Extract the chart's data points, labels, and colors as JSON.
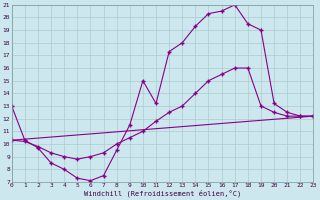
{
  "xlabel": "Windchill (Refroidissement éolien,°C)",
  "bg_color": "#cce8ee",
  "line_color": "#880088",
  "grid_color": "#aacccc",
  "xmin": 0,
  "xmax": 23,
  "ymin": 7,
  "ymax": 21,
  "line1_x": [
    0,
    1,
    2,
    3,
    4,
    5,
    6,
    7,
    8,
    9,
    10,
    11,
    12,
    13,
    14,
    15,
    16,
    17,
    18,
    19,
    20,
    21,
    22,
    23
  ],
  "line1_y": [
    13.0,
    10.3,
    9.7,
    8.5,
    8.0,
    7.3,
    7.1,
    7.5,
    9.5,
    11.5,
    15.0,
    13.2,
    17.3,
    18.0,
    19.3,
    20.3,
    20.5,
    21.0,
    19.5,
    19.0,
    13.2,
    12.5,
    12.2,
    12.2
  ],
  "line2_x": [
    0,
    1,
    2,
    3,
    4,
    5,
    6,
    7,
    8,
    9,
    10,
    11,
    12,
    13,
    14,
    15,
    16,
    17,
    18,
    19,
    20,
    21,
    22,
    23
  ],
  "line2_y": [
    10.3,
    10.2,
    9.8,
    9.3,
    9.0,
    8.8,
    9.0,
    9.3,
    10.0,
    10.5,
    11.0,
    11.8,
    12.5,
    13.0,
    14.0,
    15.0,
    15.5,
    16.0,
    16.0,
    13.0,
    12.5,
    12.2,
    12.2,
    12.2
  ],
  "line3_x": [
    0,
    23
  ],
  "line3_y": [
    10.3,
    12.2
  ]
}
